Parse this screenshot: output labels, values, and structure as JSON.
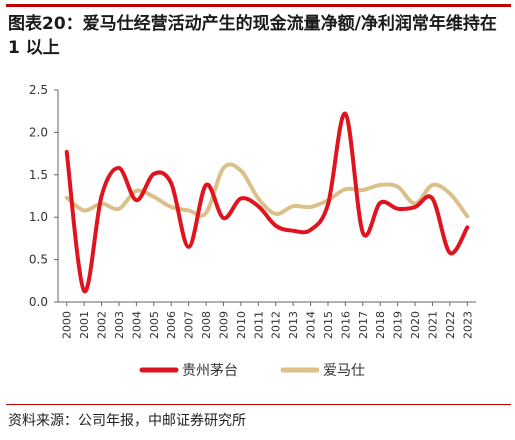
{
  "title": "图表20：爱马仕经营活动产生的现金流量净额/净利润常年维持在 1 以上",
  "source": "资料来源：公司年报，中邮证券研究所",
  "colors": {
    "accent": "#c00000",
    "series_1": "#e0141e",
    "series_2": "#dcc08a"
  },
  "chart_data": {
    "type": "line",
    "x": [
      "2000",
      "2001",
      "2002",
      "2003",
      "2004",
      "2005",
      "2006",
      "2007",
      "2008",
      "2009",
      "2010",
      "2011",
      "2012",
      "2013",
      "2014",
      "2015",
      "2016",
      "2017",
      "2018",
      "2019",
      "2020",
      "2021",
      "2022",
      "2023"
    ],
    "y_ticks": [
      "0.0",
      "0.5",
      "1.0",
      "1.5",
      "2.0",
      "2.5"
    ],
    "ylim": [
      0,
      2.5
    ],
    "grid": false,
    "legend_position": "bottom",
    "series": [
      {
        "name": "贵州茅台",
        "color": "#e0141e",
        "values": [
          1.77,
          0.13,
          1.25,
          1.58,
          1.2,
          1.51,
          1.4,
          0.65,
          1.38,
          0.99,
          1.22,
          1.13,
          0.9,
          0.84,
          0.85,
          1.15,
          2.22,
          0.82,
          1.17,
          1.1,
          1.12,
          1.22,
          0.58,
          0.88
        ]
      },
      {
        "name": "爱马仕",
        "color": "#dcc08a",
        "values": [
          1.23,
          1.08,
          1.16,
          1.1,
          1.31,
          1.24,
          1.12,
          1.08,
          1.05,
          1.58,
          1.55,
          1.22,
          1.04,
          1.13,
          1.12,
          1.2,
          1.33,
          1.32,
          1.38,
          1.36,
          1.16,
          1.38,
          1.28,
          1.01
        ]
      }
    ]
  }
}
